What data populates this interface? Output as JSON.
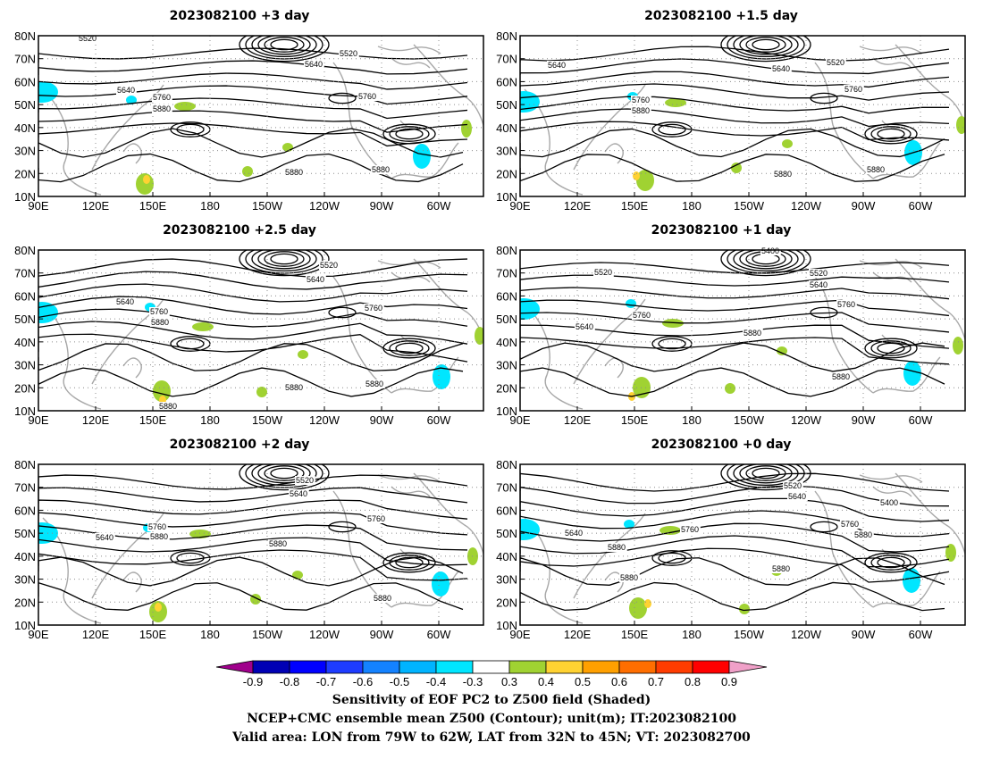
{
  "panels": [
    {
      "title": "2023082100 +3 day",
      "labels": [
        "5520",
        "5520",
        "5640",
        "5640",
        "5760",
        "5760",
        "5880",
        "5880",
        "5880"
      ]
    },
    {
      "title": "2023082100 +1.5 day",
      "labels": [
        "5640",
        "5640",
        "5520",
        "5760",
        "5760",
        "5880",
        "5880",
        "5880"
      ]
    },
    {
      "title": "2023082100 +2.5 day",
      "labels": [
        "5520",
        "5640",
        "5640",
        "5760",
        "5760",
        "5880",
        "5880",
        "5880",
        "5880"
      ]
    },
    {
      "title": "2023082100 +1 day",
      "labels": [
        "5400",
        "5520",
        "5520",
        "5640",
        "5640",
        "5760",
        "5760",
        "5880",
        "5880"
      ]
    },
    {
      "title": "2023082100 +2 day",
      "labels": [
        "5520",
        "5640",
        "5640",
        "5760",
        "5760",
        "5880",
        "5880",
        "5880"
      ]
    },
    {
      "title": "2023082100 +0 day",
      "labels": [
        "5520",
        "5640",
        "5640",
        "5400",
        "5760",
        "5760",
        "5880",
        "5880",
        "5880",
        "5880"
      ]
    }
  ],
  "lat_ticks": [
    "80N",
    "70N",
    "60N",
    "50N",
    "40N",
    "30N",
    "20N",
    "10N"
  ],
  "lon_ticks": [
    "90E",
    "120E",
    "150E",
    "180",
    "150W",
    "120W",
    "90W",
    "60W"
  ],
  "colorbar": {
    "ticks": [
      "-0.9",
      "-0.8",
      "-0.7",
      "-0.6",
      "-0.5",
      "-0.4",
      "-0.3",
      "0.3",
      "0.4",
      "0.5",
      "0.6",
      "0.7",
      "0.8",
      "0.9"
    ],
    "colors": [
      "#a0008c",
      "#0000b4",
      "#0000ff",
      "#1e3cff",
      "#1482ff",
      "#00b4ff",
      "#00e6ff",
      "#ffffff",
      "#a0d232",
      "#ffd232",
      "#ffa000",
      "#ff6e00",
      "#ff3c00",
      "#ff0000",
      "#f0a0c8"
    ]
  },
  "caption": {
    "line1": "Sensitivity of EOF PC2 to Z500 field (Shaded)",
    "line2": "NCEP+CMC ensemble mean Z500 (Contour); unit(m); IT:2023082100",
    "line3": "Valid area: LON from 79W to 62W, LAT from 32N to 45N; VT: 2023082700"
  }
}
